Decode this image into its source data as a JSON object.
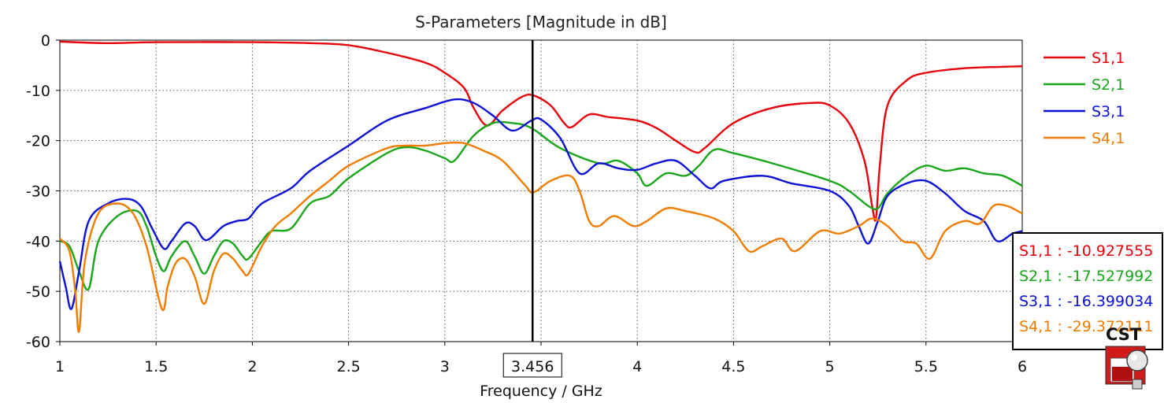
{
  "chart_data": {
    "type": "line",
    "title": "S-Parameters [Magnitude in dB]",
    "xlabel": "Frequency / GHz",
    "ylabel": "",
    "xlim": [
      1,
      6
    ],
    "ylim": [
      -60,
      0
    ],
    "x_ticks": [
      "1",
      "1.5",
      "2",
      "2.5",
      "3",
      "3.5",
      "4",
      "4.5",
      "5",
      "5.5",
      "6"
    ],
    "y_ticks": [
      "0",
      "-10",
      "-20",
      "-30",
      "-40",
      "-50",
      "-60"
    ],
    "grid": true,
    "legend_position": "right",
    "marker": {
      "x": 3.456,
      "label": "3.456"
    },
    "readout": [
      {
        "label": "S1,1 : -10.927555",
        "color": "#e8000b"
      },
      {
        "label": "S2,1 : -17.527992",
        "color": "#1aa61a"
      },
      {
        "label": "S3,1 : -16.399034",
        "color": "#0b12d6"
      },
      {
        "label": "S4,1 : -29.372111",
        "color": "#f07d00"
      }
    ],
    "series": [
      {
        "name": "S1,1",
        "color": "#e8000b",
        "x": [
          1.0,
          1.25,
          1.5,
          2.0,
          2.3,
          2.5,
          2.7,
          2.9,
          3.0,
          3.1,
          3.15,
          3.22,
          3.3,
          3.4,
          3.46,
          3.55,
          3.62,
          3.66,
          3.75,
          3.85,
          4.0,
          4.1,
          4.2,
          4.3,
          4.35,
          4.5,
          4.7,
          4.9,
          5.0,
          5.1,
          5.18,
          5.22,
          5.24,
          5.26,
          5.3,
          5.4,
          5.5,
          5.7,
          5.9,
          6.0
        ],
        "values": [
          -0.3,
          -0.6,
          -0.4,
          -0.4,
          -0.6,
          -1.0,
          -2.5,
          -4.5,
          -6.5,
          -9.5,
          -13.5,
          -17.0,
          -14.0,
          -11.3,
          -11.0,
          -13.0,
          -16.5,
          -17.3,
          -14.8,
          -15.3,
          -16.0,
          -17.5,
          -20.0,
          -22.3,
          -21.5,
          -16.5,
          -13.5,
          -12.5,
          -13.0,
          -16.5,
          -24.0,
          -33.0,
          -35.5,
          -25.0,
          -13.0,
          -8.0,
          -6.5,
          -5.6,
          -5.3,
          -5.2
        ]
      },
      {
        "name": "S2,1",
        "color": "#1aa61a",
        "x": [
          1.0,
          1.05,
          1.1,
          1.15,
          1.2,
          1.3,
          1.4,
          1.45,
          1.5,
          1.54,
          1.58,
          1.65,
          1.7,
          1.75,
          1.8,
          1.85,
          1.9,
          1.95,
          1.98,
          2.05,
          2.1,
          2.2,
          2.3,
          2.4,
          2.5,
          2.7,
          2.8,
          2.9,
          3.0,
          3.05,
          3.15,
          3.25,
          3.35,
          3.45,
          3.6,
          3.8,
          3.9,
          4.0,
          4.05,
          4.15,
          4.25,
          4.32,
          4.4,
          4.5,
          4.7,
          5.0,
          5.1,
          5.2,
          5.25,
          5.3,
          5.4,
          5.5,
          5.6,
          5.7,
          5.8,
          5.9,
          6.0
        ],
        "values": [
          -40.0,
          -41.0,
          -46.0,
          -49.5,
          -40.0,
          -35.0,
          -34.0,
          -37.0,
          -43.0,
          -46.0,
          -43.0,
          -40.0,
          -43.0,
          -46.5,
          -43.0,
          -40.0,
          -40.5,
          -43.0,
          -43.5,
          -40.0,
          -38.0,
          -37.5,
          -32.5,
          -31.0,
          -27.5,
          -22.5,
          -21.3,
          -22.0,
          -23.5,
          -24.0,
          -19.0,
          -16.5,
          -16.5,
          -17.5,
          -21.5,
          -24.5,
          -24.0,
          -26.5,
          -29.0,
          -26.5,
          -27.0,
          -25.0,
          -21.8,
          -22.5,
          -24.5,
          -28.0,
          -30.0,
          -33.0,
          -33.5,
          -30.5,
          -27.0,
          -25.0,
          -26.0,
          -25.5,
          -26.5,
          -27.0,
          -29.0
        ]
      },
      {
        "name": "S3,1",
        "color": "#0b12d6",
        "x": [
          1.0,
          1.03,
          1.06,
          1.1,
          1.15,
          1.25,
          1.35,
          1.42,
          1.48,
          1.54,
          1.58,
          1.65,
          1.7,
          1.76,
          1.85,
          1.92,
          1.98,
          2.05,
          2.2,
          2.3,
          2.5,
          2.7,
          2.9,
          3.05,
          3.15,
          3.25,
          3.35,
          3.45,
          3.5,
          3.6,
          3.7,
          3.8,
          3.9,
          4.0,
          4.1,
          4.2,
          4.3,
          4.38,
          4.45,
          4.65,
          4.8,
          5.0,
          5.1,
          5.15,
          5.2,
          5.25,
          5.3,
          5.4,
          5.5,
          5.6,
          5.7,
          5.8,
          5.87,
          5.95,
          6.0
        ],
        "values": [
          -44.0,
          -49.0,
          -53.5,
          -46.0,
          -36.0,
          -32.5,
          -31.6,
          -33.0,
          -37.5,
          -41.5,
          -40.0,
          -36.5,
          -37.0,
          -39.8,
          -37.0,
          -36.0,
          -35.5,
          -32.5,
          -29.5,
          -26.0,
          -21.0,
          -16.0,
          -13.5,
          -11.8,
          -12.5,
          -15.0,
          -18.0,
          -16.0,
          -15.8,
          -19.5,
          -26.5,
          -24.5,
          -25.5,
          -25.8,
          -24.5,
          -24.0,
          -27.0,
          -29.5,
          -28.0,
          -27.0,
          -28.5,
          -30.0,
          -33.0,
          -37.0,
          -40.5,
          -36.0,
          -31.0,
          -28.5,
          -28.0,
          -30.5,
          -34.0,
          -36.0,
          -40.0,
          -38.5,
          -38.0
        ]
      },
      {
        "name": "S4,1",
        "color": "#f07d00",
        "x": [
          1.0,
          1.05,
          1.08,
          1.1,
          1.13,
          1.2,
          1.3,
          1.38,
          1.45,
          1.53,
          1.56,
          1.6,
          1.65,
          1.7,
          1.75,
          1.8,
          1.85,
          1.9,
          1.95,
          1.98,
          2.05,
          2.12,
          2.2,
          2.3,
          2.4,
          2.5,
          2.7,
          2.8,
          2.9,
          3.0,
          3.1,
          3.2,
          3.3,
          3.42,
          3.46,
          3.55,
          3.65,
          3.7,
          3.75,
          3.8,
          3.88,
          3.98,
          4.05,
          4.15,
          4.25,
          4.4,
          4.5,
          4.58,
          4.65,
          4.75,
          4.82,
          4.95,
          5.05,
          5.15,
          5.22,
          5.3,
          5.38,
          5.45,
          5.52,
          5.6,
          5.7,
          5.78,
          5.85,
          5.92,
          6.0
        ],
        "values": [
          -39.5,
          -42.0,
          -50.0,
          -58.0,
          -44.0,
          -34.5,
          -32.5,
          -34.5,
          -41.0,
          -53.5,
          -49.0,
          -44.5,
          -43.5,
          -47.0,
          -52.5,
          -46.0,
          -42.5,
          -43.5,
          -46.0,
          -46.5,
          -41.0,
          -37.0,
          -34.5,
          -31.0,
          -28.0,
          -25.0,
          -21.5,
          -21.0,
          -21.0,
          -20.5,
          -20.5,
          -22.0,
          -24.0,
          -29.0,
          -30.3,
          -28.0,
          -27.0,
          -30.0,
          -36.0,
          -37.0,
          -35.0,
          -37.0,
          -36.0,
          -33.5,
          -34.0,
          -35.5,
          -38.0,
          -42.0,
          -41.0,
          -39.5,
          -42.0,
          -38.0,
          -38.5,
          -37.0,
          -35.5,
          -37.0,
          -40.0,
          -40.5,
          -43.5,
          -38.0,
          -36.0,
          -36.5,
          -33.0,
          -33.0,
          -34.5
        ]
      }
    ]
  },
  "logo": {
    "text": "CST"
  }
}
